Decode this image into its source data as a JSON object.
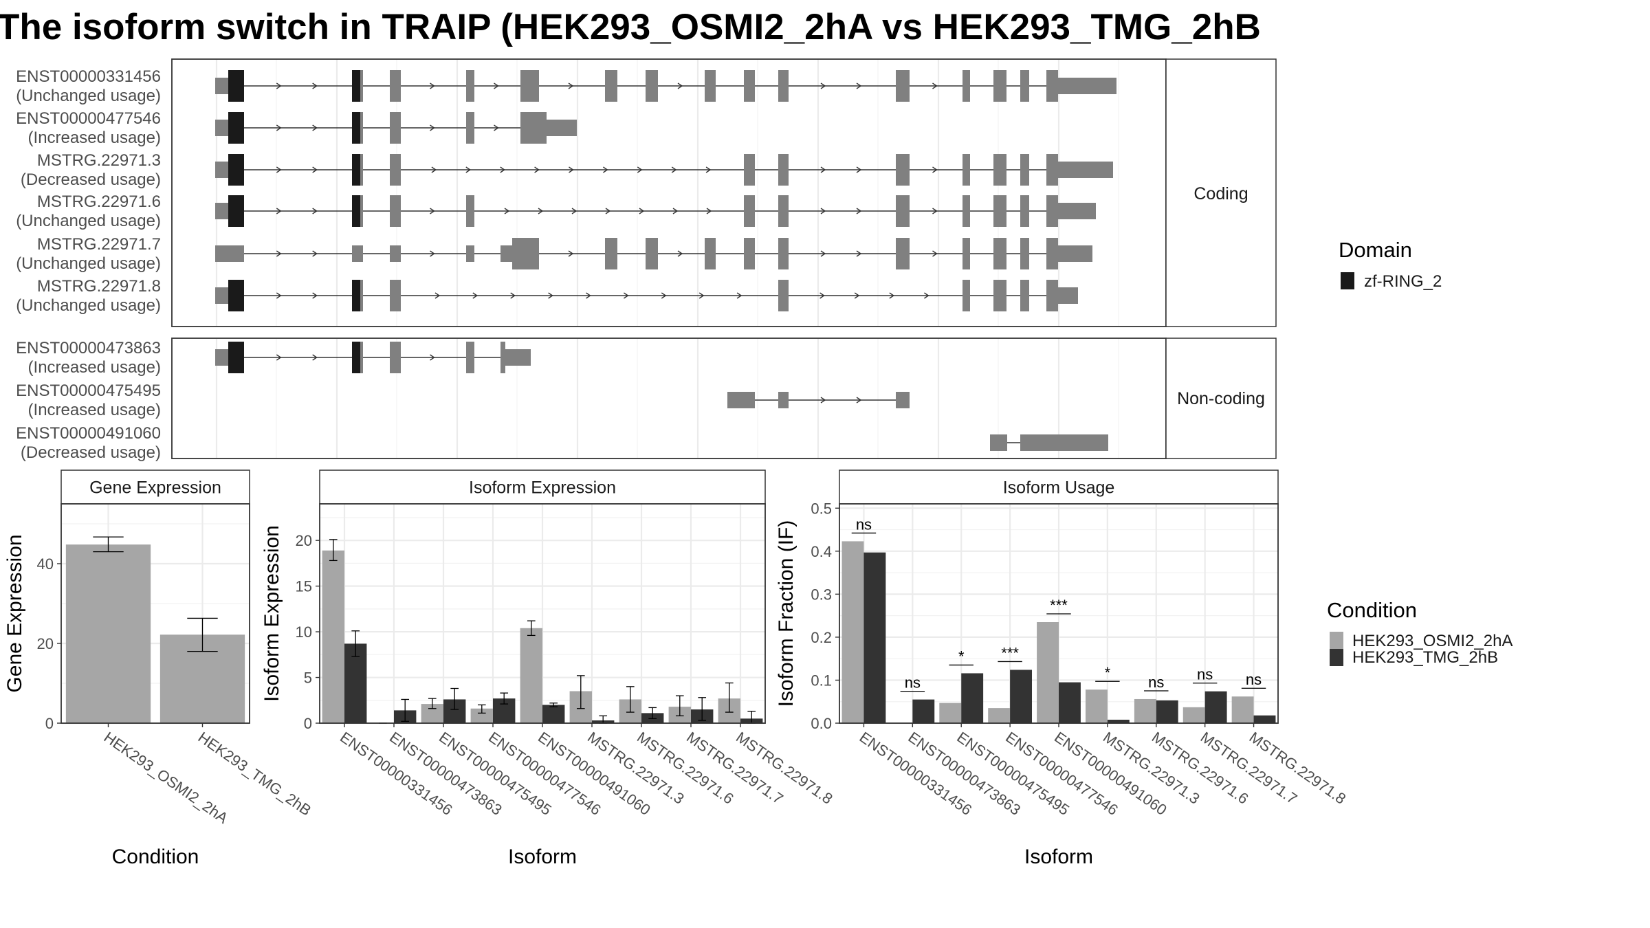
{
  "title": "The isoform switch in TRAIP (HEK293_OSMI2_2hA vs HEK293_TMG_2hB",
  "colors": {
    "condition_a": "#a6a6a6",
    "condition_b": "#333333",
    "exon": "#808080",
    "domain": "#1a1a1a",
    "intron": "#333333"
  },
  "structure": {
    "facets": [
      {
        "label": "Coding",
        "rows": [
          {
            "id": "ENST00000331456",
            "usage": "(Unchanged usage)"
          },
          {
            "id": "ENST00000477546",
            "usage": "(Increased usage)"
          },
          {
            "id": "MSTRG.22971.3",
            "usage": "(Decreased usage)"
          },
          {
            "id": "MSTRG.22971.6",
            "usage": "(Unchanged usage)"
          },
          {
            "id": "MSTRG.22971.7",
            "usage": "(Unchanged usage)"
          },
          {
            "id": "MSTRG.22971.8",
            "usage": "(Unchanged usage)"
          }
        ]
      },
      {
        "label": "Non-coding",
        "rows": [
          {
            "id": "ENST00000473863",
            "usage": "(Increased usage)"
          },
          {
            "id": "ENST00000475495",
            "usage": "(Increased usage)"
          },
          {
            "id": "ENST00000491060",
            "usage": "(Decreased usage)"
          }
        ]
      }
    ],
    "legend": {
      "title": "Domain",
      "items": [
        {
          "label": "zf-RING_2"
        }
      ]
    }
  },
  "condition_legend": {
    "title": "Condition",
    "items": [
      {
        "label": "HEK293_OSMI2_2hA"
      },
      {
        "label": "HEK293_TMG_2hB"
      }
    ]
  },
  "chart_data": [
    {
      "type": "bar",
      "title": "Gene Expression",
      "xlabel": "Condition",
      "ylabel": "Gene Expression",
      "categories": [
        "HEK293_OSMI2_2hA",
        "HEK293_TMG_2hB"
      ],
      "values": [
        44.8,
        22.2
      ],
      "errors": [
        [
          43.0,
          46.7
        ],
        [
          18.0,
          26.3
        ]
      ],
      "ylim": [
        0,
        55
      ],
      "yticks": [
        0,
        20,
        40
      ],
      "grid": true
    },
    {
      "type": "bar",
      "title": "Isoform Expression",
      "xlabel": "Isoform",
      "ylabel": "Isoform Expression",
      "categories": [
        "ENST00000331456",
        "ENST00000473863",
        "ENST00000475495",
        "ENST00000477546",
        "ENST00000491060",
        "MSTRG.22971.3",
        "MSTRG.22971.6",
        "MSTRG.22971.7",
        "MSTRG.22971.8"
      ],
      "ylim": [
        0,
        24
      ],
      "yticks": [
        0,
        5,
        10,
        15,
        20
      ],
      "grid": true,
      "series": [
        {
          "name": "HEK293_OSMI2_2hA",
          "values": [
            18.9,
            0.0,
            2.1,
            1.6,
            10.4,
            3.5,
            2.6,
            1.8,
            2.7
          ],
          "errors": [
            [
              17.8,
              20.1
            ],
            [
              0.0,
              0.0
            ],
            [
              1.6,
              2.7
            ],
            [
              1.1,
              2.0
            ],
            [
              9.6,
              11.2
            ],
            [
              1.6,
              5.2
            ],
            [
              1.2,
              4.0
            ],
            [
              0.8,
              3.0
            ],
            [
              1.2,
              4.4
            ]
          ]
        },
        {
          "name": "HEK293_TMG_2hB",
          "values": [
            8.7,
            1.4,
            2.6,
            2.7,
            2.0,
            0.3,
            1.1,
            1.5,
            0.5
          ],
          "errors": [
            [
              7.3,
              10.1
            ],
            [
              0.2,
              2.6
            ],
            [
              1.5,
              3.8
            ],
            [
              2.1,
              3.3
            ],
            [
              1.8,
              2.2
            ],
            [
              0.0,
              0.8
            ],
            [
              0.5,
              1.7
            ],
            [
              0.3,
              2.8
            ],
            [
              0.0,
              1.3
            ]
          ]
        }
      ]
    },
    {
      "type": "bar",
      "title": "Isoform Usage",
      "xlabel": "Isoform",
      "ylabel": "Isoform Fraction (IF)",
      "categories": [
        "ENST00000331456",
        "ENST00000473863",
        "ENST00000475495",
        "ENST00000477546",
        "ENST00000491060",
        "MSTRG.22971.3",
        "MSTRG.22971.6",
        "MSTRG.22971.7",
        "MSTRG.22971.8"
      ],
      "ylim": [
        0,
        0.51
      ],
      "yticks": [
        "0.0",
        "0.1",
        "0.2",
        "0.3",
        "0.4",
        "0.5"
      ],
      "grid": true,
      "series": [
        {
          "name": "HEK293_OSMI2_2hA",
          "values": [
            0.423,
            0.0,
            0.047,
            0.035,
            0.235,
            0.078,
            0.056,
            0.037,
            0.062
          ]
        },
        {
          "name": "HEK293_TMG_2hB",
          "values": [
            0.397,
            0.055,
            0.116,
            0.124,
            0.095,
            0.008,
            0.053,
            0.074,
            0.018
          ]
        }
      ],
      "significance": [
        "ns",
        "ns",
        "*",
        "***",
        "***",
        "*",
        "ns",
        "ns",
        "ns"
      ]
    }
  ]
}
